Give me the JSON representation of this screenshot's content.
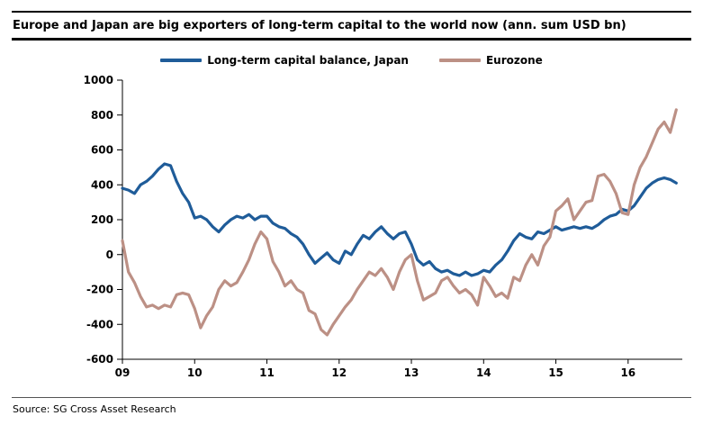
{
  "title": "Europe and Japan are big exporters of long-term capital to the world now (ann. sum USD bn)",
  "source": "Source: SG Cross Asset Research",
  "chart_data": {
    "type": "line",
    "title": "Europe and Japan are big exporters of long-term capital to the world now (ann. sum USD bn)",
    "xlabel": "",
    "ylabel": "",
    "x_unit": "year",
    "x_start": 2009.0,
    "x_step": 0.0833333,
    "xlim": [
      2009.0,
      2016.75
    ],
    "ylim": [
      -600,
      1000
    ],
    "ytick_step": 200,
    "xtick_labels": [
      "09",
      "10",
      "11",
      "12",
      "13",
      "14",
      "15",
      "16"
    ],
    "xtick_values": [
      2009,
      2010,
      2011,
      2012,
      2013,
      2014,
      2015,
      2016
    ],
    "grid": false,
    "legend_position": "top",
    "series": [
      {
        "name": "Long-term capital balance, Japan",
        "color": "#1F5C99",
        "values": [
          380,
          370,
          350,
          400,
          420,
          450,
          490,
          520,
          510,
          420,
          350,
          300,
          210,
          220,
          200,
          160,
          130,
          170,
          200,
          220,
          210,
          230,
          200,
          220,
          220,
          180,
          160,
          150,
          120,
          100,
          60,
          0,
          -50,
          -20,
          10,
          -30,
          -50,
          20,
          0,
          60,
          110,
          90,
          130,
          160,
          120,
          90,
          120,
          130,
          60,
          -30,
          -60,
          -40,
          -80,
          -100,
          -90,
          -110,
          -120,
          -100,
          -120,
          -110,
          -90,
          -100,
          -60,
          -30,
          20,
          80,
          120,
          100,
          90,
          130,
          120,
          140,
          160,
          140,
          150,
          160,
          150,
          160,
          150,
          170,
          200,
          220,
          230,
          260,
          250,
          280,
          330,
          380,
          410,
          430,
          440,
          430,
          410
        ]
      },
      {
        "name": "Eurozone",
        "color": "#BC9085",
        "values": [
          80,
          -100,
          -160,
          -240,
          -300,
          -290,
          -310,
          -290,
          -300,
          -230,
          -220,
          -230,
          -310,
          -420,
          -350,
          -300,
          -200,
          -150,
          -180,
          -160,
          -100,
          -30,
          60,
          130,
          90,
          -40,
          -100,
          -180,
          -150,
          -200,
          -220,
          -320,
          -340,
          -430,
          -460,
          -400,
          -350,
          -300,
          -260,
          -200,
          -150,
          -100,
          -120,
          -80,
          -130,
          -200,
          -100,
          -30,
          0,
          -150,
          -260,
          -240,
          -220,
          -150,
          -130,
          -180,
          -220,
          -200,
          -230,
          -290,
          -130,
          -180,
          -240,
          -220,
          -250,
          -130,
          -150,
          -60,
          0,
          -60,
          50,
          100,
          250,
          280,
          320,
          200,
          250,
          300,
          310,
          450,
          460,
          420,
          350,
          240,
          230,
          400,
          500,
          560,
          640,
          720,
          760,
          700,
          830
        ]
      }
    ]
  }
}
